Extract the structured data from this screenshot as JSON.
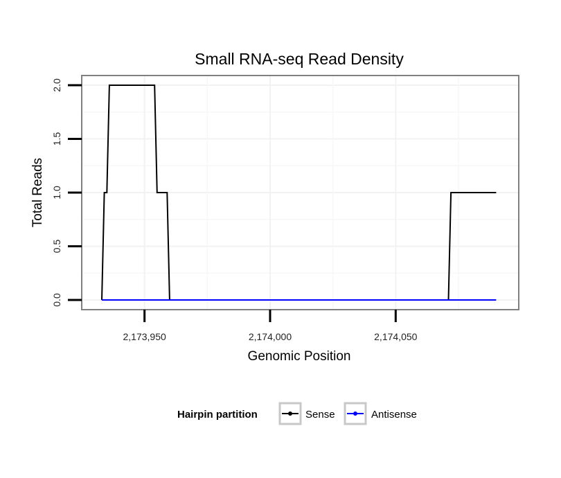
{
  "chart_data": {
    "type": "line",
    "title": "Small RNA-seq Read Density",
    "xlabel": "Genomic Position",
    "ylabel": "Total Reads",
    "xlim": [
      2173925,
      2174099
    ],
    "ylim": [
      -0.09,
      2.09
    ],
    "x_ticks": [
      {
        "value": 2173950,
        "label": "2,173,950"
      },
      {
        "value": 2174000,
        "label": "2,174,000"
      },
      {
        "value": 2174050,
        "label": "2,174,050"
      }
    ],
    "y_ticks": [
      {
        "value": 0.0,
        "label": "0.0"
      },
      {
        "value": 0.5,
        "label": "0.5"
      },
      {
        "value": 1.0,
        "label": "1.0"
      },
      {
        "value": 1.5,
        "label": "1.5"
      },
      {
        "value": 2.0,
        "label": "2.0"
      }
    ],
    "grid": true,
    "legend": {
      "title": "Hairpin partition",
      "placement": "bottom"
    },
    "series": [
      {
        "name": "Sense",
        "color": "#000000",
        "x": [
          2173933,
          2173934,
          2173935,
          2173936,
          2173954,
          2173955,
          2173959,
          2173960,
          2174071,
          2174072,
          2174090
        ],
        "y": [
          0,
          1,
          1,
          2,
          2,
          1,
          1,
          0,
          0,
          1,
          1
        ]
      },
      {
        "name": "Antisense",
        "color": "#0000ff",
        "x": [
          2173933,
          2174090
        ],
        "y": [
          0,
          0
        ]
      }
    ]
  }
}
